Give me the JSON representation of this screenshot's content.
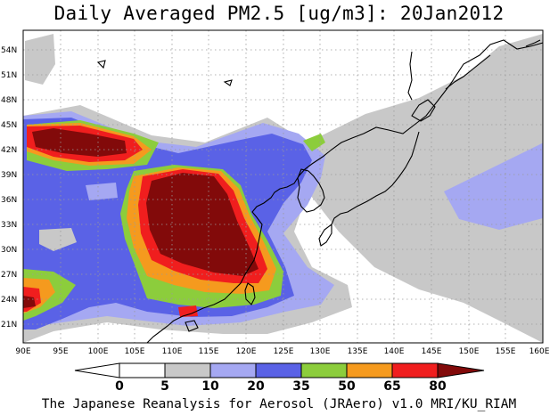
{
  "title": "Daily Averaged PM2.5 [ug/m3]: 20Jan2012",
  "footer": "The Japanese Reanalysis for Aerosol (JRAero) v1.0 MRI/KU_RIAM",
  "map": {
    "lon_labels": [
      "90E",
      "95E",
      "100E",
      "105E",
      "110E",
      "115E",
      "120E",
      "125E",
      "130E",
      "135E",
      "140E",
      "145E",
      "150E",
      "155E",
      "160E"
    ],
    "lat_labels": [
      "21N",
      "24N",
      "27N",
      "30N",
      "33N",
      "36N",
      "39N",
      "42N",
      "45N",
      "48N",
      "51N",
      "54N"
    ]
  },
  "legend": {
    "levels": [
      "0",
      "5",
      "10",
      "20",
      "35",
      "50",
      "65",
      "80"
    ],
    "colors": {
      "lt0": "#ffffff",
      "c0_5": "#ffffff",
      "c5_10": "#c8c8c8",
      "c10_20": "#a5a8f2",
      "c20_35": "#5a62e6",
      "c35_50": "#8ccd3c",
      "c50_65": "#f59a1e",
      "c65_80": "#f01e1e",
      "gt80": "#820a0a"
    }
  }
}
